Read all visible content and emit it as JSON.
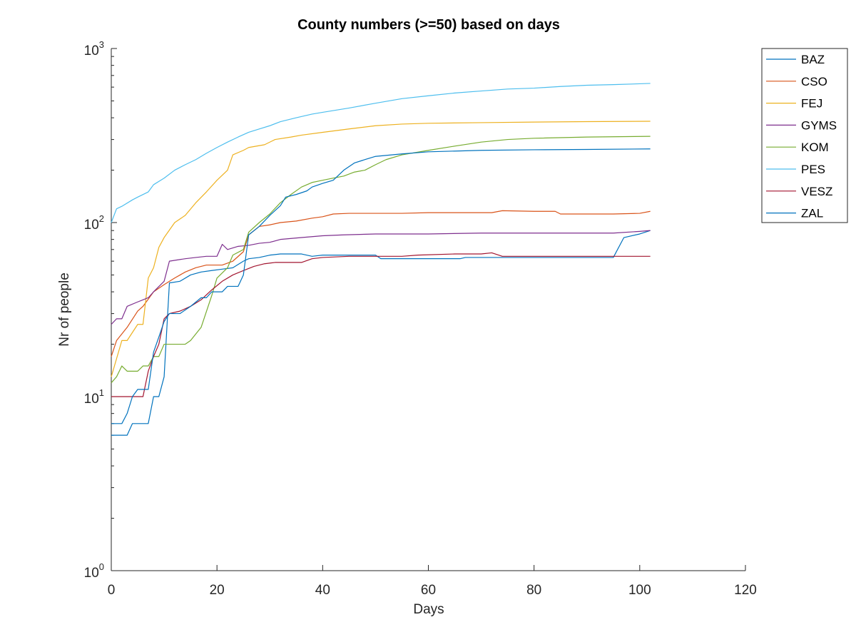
{
  "chart_data": {
    "type": "line",
    "title": "County numbers (>=50) based on days",
    "xlabel": "Days",
    "ylabel": "Nr of people",
    "xlim": [
      0,
      120
    ],
    "ylim": [
      1,
      1000
    ],
    "yscale": "log",
    "grid": false,
    "legend_position": "top-right-outside",
    "x_ticks": [
      0,
      20,
      40,
      60,
      80,
      100,
      120
    ],
    "y_ticks": [
      {
        "base": "10",
        "exp": "0",
        "value": 1
      },
      {
        "base": "10",
        "exp": "1",
        "value": 10
      },
      {
        "base": "10",
        "exp": "2",
        "value": 100
      },
      {
        "base": "10",
        "exp": "3",
        "value": 1000
      }
    ],
    "series": [
      {
        "name": "BAZ",
        "color": "#0072BD",
        "points": [
          [
            0,
            6
          ],
          [
            3,
            6
          ],
          [
            4,
            7
          ],
          [
            7,
            7
          ],
          [
            8,
            10
          ],
          [
            9,
            10
          ],
          [
            10,
            13
          ],
          [
            11,
            45
          ],
          [
            13,
            46
          ],
          [
            15,
            50
          ],
          [
            17,
            52
          ],
          [
            19,
            53
          ],
          [
            21,
            54
          ],
          [
            23,
            55
          ],
          [
            25,
            60
          ],
          [
            26,
            62
          ],
          [
            28,
            63
          ],
          [
            30,
            65
          ],
          [
            32,
            66
          ],
          [
            36,
            66
          ],
          [
            38,
            64
          ],
          [
            40,
            65
          ],
          [
            45,
            65
          ],
          [
            50,
            65
          ],
          [
            51,
            62
          ],
          [
            60,
            62
          ],
          [
            66,
            62
          ],
          [
            67,
            63
          ],
          [
            80,
            63
          ],
          [
            95,
            63
          ],
          [
            97,
            82
          ],
          [
            100,
            86
          ],
          [
            102,
            90
          ]
        ]
      },
      {
        "name": "CSO",
        "color": "#D95319",
        "points": [
          [
            0,
            17
          ],
          [
            1,
            21
          ],
          [
            3,
            25
          ],
          [
            5,
            31
          ],
          [
            6,
            33
          ],
          [
            8,
            40
          ],
          [
            10,
            44
          ],
          [
            12,
            48
          ],
          [
            14,
            52
          ],
          [
            16,
            55
          ],
          [
            18,
            57
          ],
          [
            21,
            57
          ],
          [
            23,
            60
          ],
          [
            25,
            68
          ],
          [
            26,
            85
          ],
          [
            28,
            95
          ],
          [
            30,
            97
          ],
          [
            32,
            100
          ],
          [
            35,
            102
          ],
          [
            38,
            106
          ],
          [
            40,
            108
          ],
          [
            42,
            112
          ],
          [
            45,
            113
          ],
          [
            55,
            113
          ],
          [
            60,
            114
          ],
          [
            72,
            114
          ],
          [
            74,
            117
          ],
          [
            80,
            116
          ],
          [
            84,
            116
          ],
          [
            85,
            112
          ],
          [
            95,
            112
          ],
          [
            100,
            113
          ],
          [
            102,
            116
          ]
        ]
      },
      {
        "name": "FEJ",
        "color": "#EDB120",
        "points": [
          [
            0,
            13
          ],
          [
            2,
            21
          ],
          [
            3,
            21
          ],
          [
            5,
            26
          ],
          [
            6,
            26
          ],
          [
            7,
            48
          ],
          [
            8,
            55
          ],
          [
            9,
            72
          ],
          [
            10,
            82
          ],
          [
            12,
            100
          ],
          [
            14,
            110
          ],
          [
            16,
            130
          ],
          [
            18,
            150
          ],
          [
            20,
            175
          ],
          [
            22,
            200
          ],
          [
            23,
            245
          ],
          [
            25,
            260
          ],
          [
            26,
            270
          ],
          [
            29,
            280
          ],
          [
            31,
            300
          ],
          [
            34,
            310
          ],
          [
            36,
            318
          ],
          [
            40,
            330
          ],
          [
            45,
            345
          ],
          [
            50,
            360
          ],
          [
            55,
            368
          ],
          [
            60,
            372
          ],
          [
            70,
            375
          ],
          [
            80,
            378
          ],
          [
            90,
            380
          ],
          [
            102,
            382
          ]
        ]
      },
      {
        "name": "GYMS",
        "color": "#7E2F8E",
        "points": [
          [
            0,
            26
          ],
          [
            1,
            28
          ],
          [
            2,
            28
          ],
          [
            3,
            33
          ],
          [
            5,
            35
          ],
          [
            6,
            36
          ],
          [
            7,
            37
          ],
          [
            8,
            40
          ],
          [
            10,
            46
          ],
          [
            11,
            60
          ],
          [
            14,
            62
          ],
          [
            16,
            63
          ],
          [
            18,
            64
          ],
          [
            20,
            64
          ],
          [
            21,
            75
          ],
          [
            22,
            70
          ],
          [
            24,
            73
          ],
          [
            26,
            74
          ],
          [
            28,
            76
          ],
          [
            30,
            77
          ],
          [
            32,
            80
          ],
          [
            36,
            82
          ],
          [
            40,
            84
          ],
          [
            44,
            85
          ],
          [
            50,
            86
          ],
          [
            60,
            86
          ],
          [
            70,
            87
          ],
          [
            80,
            87
          ],
          [
            90,
            87
          ],
          [
            95,
            87
          ],
          [
            100,
            89
          ],
          [
            102,
            90
          ]
        ]
      },
      {
        "name": "KOM",
        "color": "#77AC30",
        "points": [
          [
            0,
            12
          ],
          [
            1,
            13
          ],
          [
            2,
            15
          ],
          [
            3,
            14
          ],
          [
            5,
            14
          ],
          [
            6,
            15
          ],
          [
            7,
            15
          ],
          [
            8,
            17
          ],
          [
            9,
            17
          ],
          [
            10,
            20
          ],
          [
            13,
            20
          ],
          [
            14,
            20
          ],
          [
            15,
            21
          ],
          [
            17,
            25
          ],
          [
            19,
            38
          ],
          [
            20,
            48
          ],
          [
            22,
            55
          ],
          [
            23,
            65
          ],
          [
            25,
            70
          ],
          [
            26,
            88
          ],
          [
            28,
            100
          ],
          [
            30,
            112
          ],
          [
            32,
            130
          ],
          [
            34,
            145
          ],
          [
            36,
            160
          ],
          [
            38,
            170
          ],
          [
            40,
            175
          ],
          [
            42,
            180
          ],
          [
            44,
            185
          ],
          [
            46,
            195
          ],
          [
            48,
            200
          ],
          [
            50,
            215
          ],
          [
            52,
            230
          ],
          [
            55,
            245
          ],
          [
            60,
            260
          ],
          [
            65,
            275
          ],
          [
            70,
            290
          ],
          [
            75,
            300
          ],
          [
            80,
            305
          ],
          [
            90,
            310
          ],
          [
            102,
            313
          ]
        ]
      },
      {
        "name": "PES",
        "color": "#4DBEEE",
        "points": [
          [
            0,
            100
          ],
          [
            1,
            120
          ],
          [
            2,
            124
          ],
          [
            4,
            135
          ],
          [
            5,
            140
          ],
          [
            7,
            150
          ],
          [
            8,
            165
          ],
          [
            10,
            180
          ],
          [
            12,
            200
          ],
          [
            14,
            215
          ],
          [
            16,
            230
          ],
          [
            18,
            250
          ],
          [
            20,
            270
          ],
          [
            22,
            290
          ],
          [
            24,
            310
          ],
          [
            26,
            330
          ],
          [
            28,
            345
          ],
          [
            30,
            360
          ],
          [
            32,
            380
          ],
          [
            35,
            400
          ],
          [
            38,
            420
          ],
          [
            40,
            430
          ],
          [
            45,
            455
          ],
          [
            50,
            485
          ],
          [
            55,
            515
          ],
          [
            60,
            535
          ],
          [
            65,
            555
          ],
          [
            70,
            570
          ],
          [
            75,
            585
          ],
          [
            80,
            592
          ],
          [
            85,
            605
          ],
          [
            90,
            615
          ],
          [
            95,
            620
          ],
          [
            102,
            630
          ]
        ]
      },
      {
        "name": "VESZ",
        "color": "#A2142F",
        "points": [
          [
            0,
            10
          ],
          [
            6,
            10
          ],
          [
            7,
            14
          ],
          [
            8,
            17
          ],
          [
            9,
            20
          ],
          [
            10,
            28
          ],
          [
            11,
            30
          ],
          [
            13,
            31
          ],
          [
            15,
            33
          ],
          [
            17,
            36
          ],
          [
            19,
            41
          ],
          [
            21,
            46
          ],
          [
            23,
            50
          ],
          [
            25,
            53
          ],
          [
            27,
            56
          ],
          [
            29,
            58
          ],
          [
            31,
            59
          ],
          [
            36,
            59
          ],
          [
            38,
            62
          ],
          [
            40,
            63
          ],
          [
            45,
            64
          ],
          [
            55,
            64
          ],
          [
            58,
            65
          ],
          [
            65,
            66
          ],
          [
            70,
            66
          ],
          [
            72,
            67
          ],
          [
            74,
            64
          ],
          [
            80,
            64
          ],
          [
            90,
            64
          ],
          [
            102,
            64
          ]
        ]
      },
      {
        "name": "ZAL",
        "color": "#0072BD",
        "points": [
          [
            0,
            7
          ],
          [
            2,
            7
          ],
          [
            3,
            8
          ],
          [
            4,
            10
          ],
          [
            5,
            11
          ],
          [
            6,
            11
          ],
          [
            7,
            11
          ],
          [
            8,
            18
          ],
          [
            9,
            22
          ],
          [
            10,
            27
          ],
          [
            11,
            30
          ],
          [
            13,
            30
          ],
          [
            15,
            33
          ],
          [
            17,
            37
          ],
          [
            18,
            37
          ],
          [
            19,
            40
          ],
          [
            21,
            40
          ],
          [
            22,
            43
          ],
          [
            24,
            43
          ],
          [
            25,
            50
          ],
          [
            26,
            85
          ],
          [
            28,
            95
          ],
          [
            30,
            110
          ],
          [
            32,
            125
          ],
          [
            33,
            140
          ],
          [
            35,
            145
          ],
          [
            37,
            152
          ],
          [
            38,
            160
          ],
          [
            40,
            168
          ],
          [
            42,
            175
          ],
          [
            44,
            200
          ],
          [
            46,
            220
          ],
          [
            48,
            230
          ],
          [
            50,
            240
          ],
          [
            55,
            248
          ],
          [
            60,
            255
          ],
          [
            70,
            260
          ],
          [
            80,
            262
          ],
          [
            90,
            263
          ],
          [
            102,
            265
          ]
        ]
      }
    ]
  }
}
